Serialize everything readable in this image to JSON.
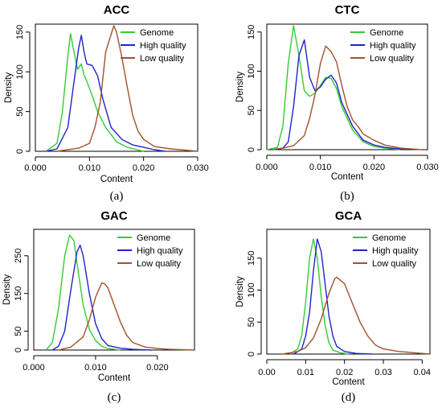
{
  "colors": {
    "genome": "#33cc33",
    "high": "#2222cc",
    "low": "#a0522d"
  },
  "chart_data": [
    {
      "type": "line",
      "title": "ACC",
      "xlabel": "Content",
      "ylabel": "Density",
      "sublabel": "(a)",
      "xlim": [
        0.0,
        0.03
      ],
      "ylim": [
        0,
        160
      ],
      "xticks": [
        "0.000",
        "0.010",
        "0.020",
        "0.030"
      ],
      "xtick_values": [
        0.0,
        0.01,
        0.02,
        0.03
      ],
      "yticks": [
        "0",
        "50",
        "100",
        "150"
      ],
      "ytick_values": [
        0,
        50,
        100,
        150
      ],
      "legend": {
        "position": "top-right",
        "entries": [
          "Genome",
          "High quality",
          "Low quality"
        ]
      },
      "series": [
        {
          "name": "Genome",
          "color": "genome",
          "x": [
            0.002,
            0.004,
            0.005,
            0.006,
            0.0065,
            0.007,
            0.0078,
            0.0085,
            0.009,
            0.0095,
            0.0105,
            0.0115,
            0.013,
            0.015,
            0.017,
            0.02
          ],
          "y": [
            0,
            10,
            50,
            120,
            148,
            130,
            103,
            110,
            96,
            88,
            70,
            50,
            30,
            12,
            5,
            0
          ]
        },
        {
          "name": "High quality",
          "color": "high",
          "x": [
            0.002,
            0.004,
            0.006,
            0.007,
            0.008,
            0.0085,
            0.009,
            0.0095,
            0.0105,
            0.0115,
            0.0125,
            0.014,
            0.016,
            0.018,
            0.02,
            0.022,
            0.024
          ],
          "y": [
            0,
            3,
            30,
            80,
            130,
            146,
            125,
            110,
            108,
            95,
            65,
            30,
            15,
            8,
            5,
            2,
            0
          ]
        },
        {
          "name": "Low quality",
          "color": "low",
          "x": [
            0.004,
            0.008,
            0.01,
            0.011,
            0.012,
            0.013,
            0.0145,
            0.015,
            0.016,
            0.017,
            0.018,
            0.019,
            0.02,
            0.022,
            0.025,
            0.03
          ],
          "y": [
            0,
            4,
            10,
            30,
            62,
            125,
            158,
            150,
            118,
            80,
            45,
            25,
            15,
            6,
            3,
            0
          ]
        }
      ]
    },
    {
      "type": "line",
      "title": "CTC",
      "xlabel": "Content",
      "ylabel": "Density",
      "sublabel": "(b)",
      "xlim": [
        0.0,
        0.03
      ],
      "ylim": [
        0,
        160
      ],
      "xticks": [
        "0.000",
        "0.010",
        "0.020",
        "0.030"
      ],
      "xtick_values": [
        0.0,
        0.01,
        0.02,
        0.03
      ],
      "yticks": [
        "0",
        "50",
        "100",
        "150"
      ],
      "ytick_values": [
        0,
        50,
        100,
        150
      ],
      "legend": {
        "position": "top-right",
        "entries": [
          "Genome",
          "High quality",
          "Low quality"
        ]
      },
      "series": [
        {
          "name": "Genome",
          "color": "genome",
          "x": [
            0.0,
            0.002,
            0.003,
            0.004,
            0.005,
            0.006,
            0.007,
            0.008,
            0.009,
            0.01,
            0.011,
            0.012,
            0.013,
            0.014,
            0.016,
            0.018,
            0.02,
            0.022,
            0.025
          ],
          "y": [
            0,
            3,
            30,
            110,
            158,
            120,
            75,
            68,
            72,
            82,
            92,
            91,
            78,
            55,
            25,
            10,
            4,
            2,
            0
          ]
        },
        {
          "name": "High quality",
          "color": "high",
          "x": [
            0.001,
            0.003,
            0.004,
            0.005,
            0.006,
            0.007,
            0.008,
            0.009,
            0.01,
            0.011,
            0.012,
            0.013,
            0.014,
            0.016,
            0.018,
            0.02,
            0.022,
            0.026
          ],
          "y": [
            0,
            2,
            10,
            55,
            120,
            140,
            92,
            75,
            80,
            90,
            95,
            85,
            60,
            30,
            12,
            6,
            3,
            0
          ]
        },
        {
          "name": "Low quality",
          "color": "low",
          "x": [
            0.001,
            0.003,
            0.005,
            0.007,
            0.008,
            0.009,
            0.01,
            0.011,
            0.012,
            0.013,
            0.014,
            0.015,
            0.016,
            0.017,
            0.018,
            0.02,
            0.022,
            0.025,
            0.029
          ],
          "y": [
            0,
            2,
            5,
            18,
            40,
            70,
            110,
            132,
            125,
            112,
            82,
            55,
            38,
            30,
            20,
            12,
            6,
            2,
            0
          ]
        }
      ]
    },
    {
      "type": "line",
      "title": "GAC",
      "xlabel": "Content",
      "ylabel": "Density",
      "sublabel": "(c)",
      "xlim": [
        0.0,
        0.026
      ],
      "ylim": [
        0,
        320
      ],
      "xticks": [
        "0.000",
        "0.010",
        "0.020"
      ],
      "xtick_values": [
        0.0,
        0.01,
        0.02
      ],
      "yticks": [
        "0",
        "50",
        "150",
        "250"
      ],
      "ytick_values": [
        0,
        50,
        150,
        250
      ],
      "legend": {
        "position": "top-right",
        "entries": [
          "Genome",
          "High quality",
          "Low quality"
        ]
      },
      "series": [
        {
          "name": "Genome",
          "color": "genome",
          "x": [
            0.002,
            0.003,
            0.004,
            0.005,
            0.0058,
            0.0065,
            0.007,
            0.008,
            0.009,
            0.01,
            0.011,
            0.012,
            0.014
          ],
          "y": [
            0,
            20,
            110,
            250,
            305,
            290,
            230,
            120,
            55,
            25,
            10,
            4,
            0
          ]
        },
        {
          "name": "High quality",
          "color": "high",
          "x": [
            0.003,
            0.004,
            0.005,
            0.006,
            0.007,
            0.0075,
            0.008,
            0.009,
            0.01,
            0.011,
            0.012,
            0.014,
            0.016,
            0.019
          ],
          "y": [
            0,
            10,
            50,
            160,
            260,
            278,
            250,
            150,
            70,
            30,
            12,
            5,
            2,
            0
          ]
        },
        {
          "name": "Low quality",
          "color": "low",
          "x": [
            0.004,
            0.006,
            0.008,
            0.009,
            0.01,
            0.011,
            0.0115,
            0.012,
            0.013,
            0.014,
            0.015,
            0.016,
            0.018,
            0.02,
            0.022,
            0.026
          ],
          "y": [
            0,
            8,
            35,
            80,
            140,
            178,
            175,
            165,
            120,
            75,
            40,
            20,
            8,
            4,
            2,
            0
          ]
        }
      ]
    },
    {
      "type": "line",
      "title": "GCA",
      "xlabel": "Content",
      "ylabel": "Density",
      "sublabel": "(d)",
      "xlim": [
        0.0,
        0.042
      ],
      "ylim": [
        0,
        195
      ],
      "xticks": [
        "0.00",
        "0.01",
        "0.02",
        "0.03",
        "0.04"
      ],
      "xtick_values": [
        0.0,
        0.01,
        0.02,
        0.03,
        0.04
      ],
      "yticks": [
        "0",
        "50",
        "100",
        "150"
      ],
      "ytick_values": [
        0,
        50,
        100,
        150
      ],
      "legend": {
        "position": "top-right",
        "entries": [
          "Genome",
          "High quality",
          "Low quality"
        ]
      },
      "series": [
        {
          "name": "Genome",
          "color": "genome",
          "x": [
            0.006,
            0.008,
            0.009,
            0.01,
            0.011,
            0.012,
            0.013,
            0.014,
            0.015,
            0.016,
            0.017,
            0.019,
            0.021
          ],
          "y": [
            0,
            8,
            30,
            80,
            150,
            180,
            150,
            90,
            45,
            18,
            6,
            2,
            0
          ]
        },
        {
          "name": "High quality",
          "color": "high",
          "x": [
            0.007,
            0.009,
            0.01,
            0.011,
            0.012,
            0.013,
            0.014,
            0.015,
            0.016,
            0.017,
            0.018,
            0.02,
            0.023,
            0.027
          ],
          "y": [
            0,
            8,
            28,
            65,
            130,
            180,
            160,
            110,
            60,
            28,
            12,
            4,
            1,
            0
          ]
        },
        {
          "name": "Low quality",
          "color": "low",
          "x": [
            0.004,
            0.008,
            0.01,
            0.012,
            0.014,
            0.016,
            0.0175,
            0.018,
            0.02,
            0.022,
            0.024,
            0.026,
            0.028,
            0.03,
            0.034,
            0.038,
            0.042
          ],
          "y": [
            0,
            4,
            10,
            25,
            55,
            95,
            118,
            120,
            110,
            80,
            50,
            28,
            14,
            8,
            4,
            2,
            0
          ]
        }
      ]
    }
  ]
}
